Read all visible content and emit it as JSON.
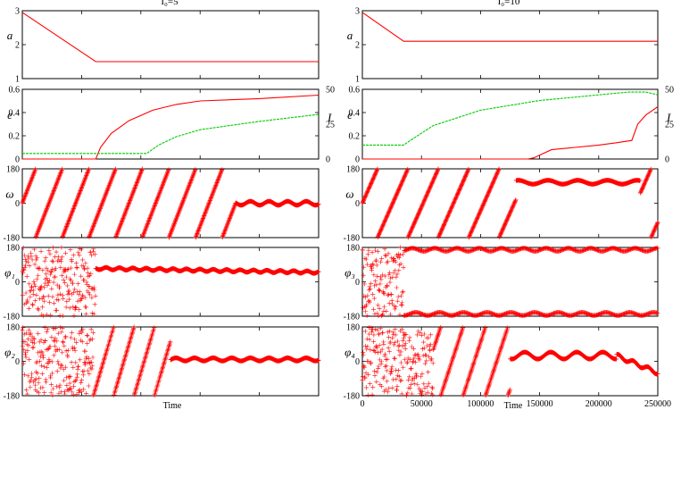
{
  "colors": {
    "series_red": "#ff0000",
    "series_green": "#00cc00",
    "axis": "#000000"
  },
  "figure": {
    "xlabel": "Time",
    "columns": [
      {
        "title": "I₀=5"
      },
      {
        "title": "I₀=10"
      }
    ]
  },
  "chart_data": [
    {
      "type": "line",
      "panel": "left-a",
      "title": "I₀=5",
      "ylabel": "a",
      "xlim": [
        0,
        250000
      ],
      "ylim": [
        1,
        3
      ],
      "yticks": [
        1,
        2,
        3
      ],
      "series": [
        {
          "x": [
            0,
            62000,
            250000
          ],
          "values": [
            2.95,
            1.5,
            1.5
          ]
        }
      ]
    },
    {
      "type": "line",
      "panel": "left-e",
      "ylabel": "e",
      "ylabel_right": "I",
      "xlim": [
        0,
        250000
      ],
      "ylim": [
        0,
        0.6
      ],
      "yticks": [
        "0",
        "0.2",
        "0.4",
        "0.6"
      ],
      "y2lim": [
        0,
        50
      ],
      "y2ticks": [
        0,
        25,
        50
      ],
      "series": [
        {
          "color": "#ff0000",
          "x": [
            0,
            62000,
            66000,
            75000,
            90000,
            110000,
            130000,
            150000,
            200000,
            250000
          ],
          "values": [
            0,
            0,
            0.1,
            0.22,
            0.33,
            0.42,
            0.47,
            0.5,
            0.52,
            0.55
          ]
        },
        {
          "color": "#00cc00",
          "axis": "right",
          "x": [
            0,
            60000,
            105000,
            115000,
            130000,
            150000,
            200000,
            250000
          ],
          "values": [
            4,
            4,
            4,
            10,
            16,
            21,
            27,
            32
          ]
        }
      ]
    },
    {
      "type": "scatter",
      "panel": "left-omega",
      "ylabel": "ω",
      "xlim": [
        0,
        250000
      ],
      "ylim": [
        -180,
        180
      ],
      "yticks": [
        -180,
        0,
        180
      ],
      "behavior": "circulating 0–180000, then librating near 0 (±10) to 250000"
    },
    {
      "type": "scatter",
      "panel": "left-phi1",
      "ylabel": "φ₁",
      "xlim": [
        0,
        250000
      ],
      "ylim": [
        -180,
        180
      ],
      "yticks": [
        -180,
        0,
        180
      ],
      "behavior": "scattered 0–62000, then ~70 decreasing to ~50"
    },
    {
      "type": "scatter",
      "panel": "left-phi2",
      "ylabel": "φ₂",
      "xlim": [
        0,
        250000
      ],
      "ylim": [
        -180,
        180
      ],
      "yticks": [
        -180,
        0,
        180
      ],
      "behavior": "circulating 0–125000, then librating near 0–20"
    },
    {
      "type": "line",
      "panel": "right-a",
      "title": "I₀=10",
      "ylabel": "a",
      "xlim": [
        0,
        250000
      ],
      "ylim": [
        1,
        3
      ],
      "yticks": [
        1,
        2,
        3
      ],
      "series": [
        {
          "x": [
            0,
            35000,
            250000
          ],
          "values": [
            2.95,
            2.1,
            2.1
          ]
        }
      ]
    },
    {
      "type": "line",
      "panel": "right-e",
      "ylabel": "e",
      "ylabel_right": "I",
      "xlim": [
        0,
        250000
      ],
      "ylim": [
        0,
        0.6
      ],
      "yticks": [
        "0",
        "0.2",
        "0.4",
        "0.6"
      ],
      "y2lim": [
        0,
        50
      ],
      "y2ticks": [
        0,
        25,
        50
      ],
      "series": [
        {
          "color": "#ff0000",
          "x": [
            0,
            140000,
            145000,
            160000,
            180000,
            200000,
            215000,
            228000,
            233000,
            240000,
            250000
          ],
          "values": [
            0,
            0,
            0.01,
            0.08,
            0.1,
            0.12,
            0.14,
            0.16,
            0.3,
            0.38,
            0.45
          ]
        },
        {
          "color": "#00cc00",
          "axis": "right",
          "x": [
            0,
            35000,
            40000,
            60000,
            100000,
            150000,
            200000,
            225000,
            240000,
            250000
          ],
          "values": [
            10,
            10,
            13,
            24,
            35,
            42,
            46,
            48,
            48,
            46
          ]
        }
      ]
    },
    {
      "type": "scatter",
      "panel": "right-omega",
      "ylabel": "ω",
      "xlim": [
        0,
        250000
      ],
      "ylim": [
        -180,
        180
      ],
      "yticks": [
        -180,
        0,
        180
      ],
      "behavior": "circulating 0–130000, then ~110 oscillating ±10 until ~235000, then circulating"
    },
    {
      "type": "scatter",
      "panel": "right-phi3",
      "ylabel": "φ₃",
      "xlim": [
        0,
        250000
      ],
      "ylim": [
        -180,
        180
      ],
      "yticks": [
        -180,
        0,
        180
      ],
      "behavior": "scattered 0–35000, then two bands near ±170"
    },
    {
      "type": "scatter",
      "panel": "right-phi4",
      "ylabel": "φ₄",
      "xlim": [
        0,
        250000
      ],
      "ylim": [
        -180,
        180
      ],
      "yticks": [
        -180,
        0,
        180
      ],
      "xticks": [
        0,
        50000,
        100000,
        150000,
        200000,
        250000
      ],
      "behavior": "scattered 0–125000, then librating around ~30 to 215000, decreasing to ~-60 at 250000"
    }
  ]
}
